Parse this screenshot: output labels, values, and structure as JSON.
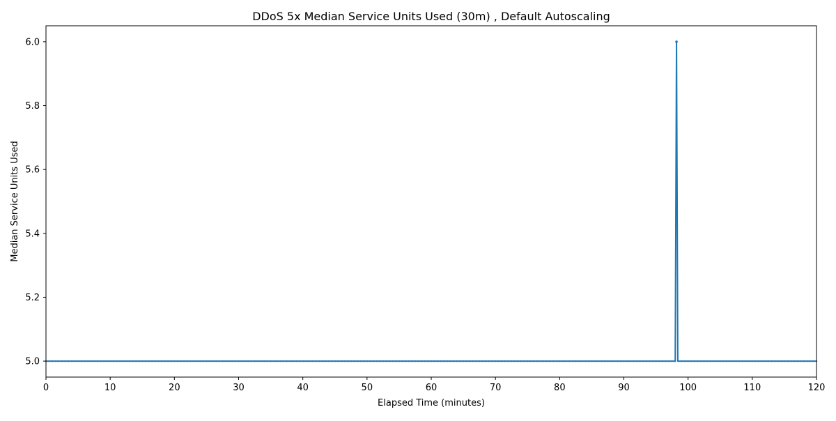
{
  "chart_data": {
    "type": "line",
    "title": "DDoS 5x Median Service Units Used (30m) , Default Autoscaling",
    "xlabel": "Elapsed Time (minutes)",
    "ylabel": "Median Service Units Used",
    "xlim": [
      0,
      120
    ],
    "ylim": [
      4.95,
      6.05
    ],
    "xticks": [
      0,
      10,
      20,
      30,
      40,
      50,
      60,
      70,
      80,
      90,
      100,
      110,
      120
    ],
    "yticks": [
      5.0,
      5.2,
      5.4,
      5.6,
      5.8,
      6.0
    ],
    "ytick_labels": [
      "5.0",
      "5.2",
      "5.4",
      "5.6",
      "5.8",
      "6.0"
    ],
    "grid": false,
    "series": [
      {
        "color": "#1f77b4",
        "x": [
          0,
          98.0,
          98.2,
          98.4,
          120
        ],
        "y": [
          5.0,
          5.0,
          6.0,
          5.0,
          5.0
        ]
      }
    ]
  }
}
